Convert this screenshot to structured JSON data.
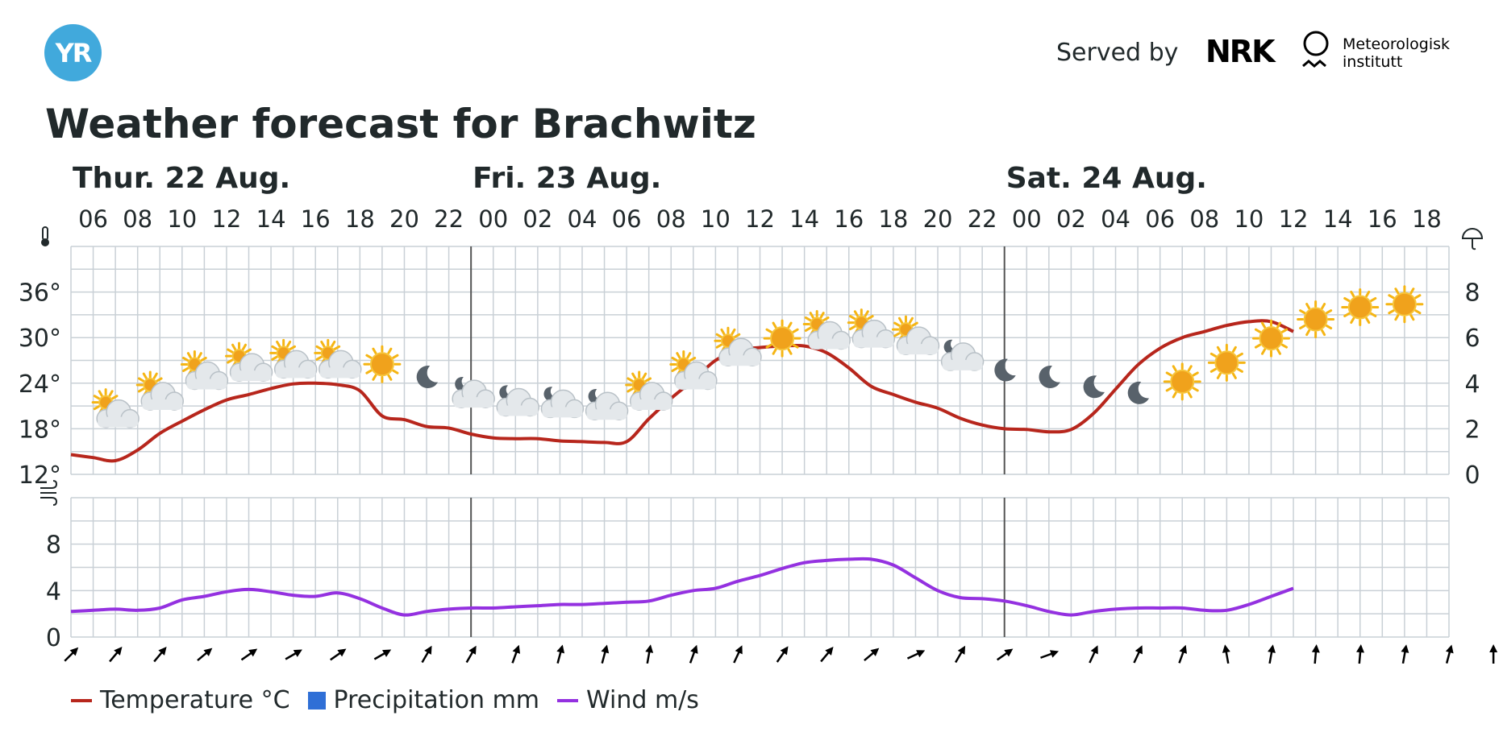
{
  "header": {
    "logo_text": "YR",
    "served_by": "Served by",
    "nrk_text": "NRK",
    "met_line1": "Meteorologisk",
    "met_line2": "institutt"
  },
  "title": "Weather forecast for Brachwitz",
  "colors": {
    "temperature": "#b7261c",
    "precipitation": "#2f6fd6",
    "wind": "#9431e0",
    "grid": "#c9d0d6",
    "logo": "#41a9dc"
  },
  "chart_data": {
    "type": "line",
    "days": [
      {
        "label": "Thur. 22 Aug.",
        "start_hour_index": 0
      },
      {
        "label": "Fri. 23 Aug.",
        "start_hour_index": 9
      },
      {
        "label": "Sat. 24 Aug.",
        "start_hour_index": 21
      }
    ],
    "hour_labels": [
      "06",
      "08",
      "10",
      "12",
      "14",
      "16",
      "18",
      "20",
      "22",
      "00",
      "02",
      "04",
      "06",
      "08",
      "10",
      "12",
      "14",
      "16",
      "18",
      "20",
      "22",
      "00",
      "02",
      "04",
      "06",
      "08",
      "10",
      "12",
      "14",
      "16",
      "18"
    ],
    "temperature_axis": {
      "ticks": [
        "12°",
        "18°",
        "24°",
        "30°",
        "36°"
      ],
      "ylim": [
        12,
        42
      ],
      "icon": "thermometer-icon"
    },
    "precipitation_axis": {
      "ticks": [
        "0",
        "2",
        "4",
        "6",
        "8"
      ],
      "ylim": [
        0,
        10
      ],
      "icon": "umbrella-icon"
    },
    "wind_axis": {
      "ticks": [
        "0",
        "4",
        "8"
      ],
      "ylim": [
        0,
        12
      ],
      "icon": "wind-icon"
    },
    "series": [
      {
        "name": "Temperature °C",
        "values": [
          14.6,
          14.2,
          13.8,
          15.2,
          17.4,
          19.0,
          20.5,
          21.8,
          22.5,
          23.3,
          23.9,
          24.0,
          23.8,
          23.0,
          19.7,
          19.2,
          18.3,
          18.1,
          17.3,
          16.8,
          16.7,
          16.7,
          16.4,
          16.3,
          16.2,
          16.3,
          19.3,
          22.0,
          24.4,
          27.0,
          28.3,
          28.7,
          28.9,
          28.9,
          28.0,
          26.0,
          23.6,
          22.5,
          21.5,
          20.7,
          19.4,
          18.5,
          18.0,
          17.9,
          17.6,
          17.9,
          20.0,
          23.2,
          26.4,
          28.6,
          30.0,
          30.8,
          31.6,
          32.1,
          32.1,
          30.8
        ]
      },
      {
        "name": "Precipitation mm",
        "values": []
      },
      {
        "name": "Wind m/s",
        "values": [
          2.2,
          2.3,
          2.4,
          2.3,
          2.5,
          3.2,
          3.5,
          3.9,
          4.1,
          3.9,
          3.6,
          3.5,
          3.8,
          3.3,
          2.5,
          1.9,
          2.2,
          2.4,
          2.5,
          2.5,
          2.6,
          2.7,
          2.8,
          2.8,
          2.9,
          3.0,
          3.1,
          3.6,
          4.0,
          4.2,
          4.8,
          5.3,
          5.9,
          6.4,
          6.6,
          6.7,
          6.7,
          6.2,
          5.1,
          4.0,
          3.4,
          3.3,
          3.1,
          2.7,
          2.2,
          1.9,
          2.2,
          2.4,
          2.5,
          2.5,
          2.5,
          2.3,
          2.3,
          2.8,
          3.5,
          4.2
        ]
      }
    ],
    "weather_icons": [
      "partly-cloudy-icon",
      "partly-cloudy-icon",
      "partly-cloudy-icon",
      "partly-cloudy-icon",
      "partly-cloudy-icon",
      "partly-cloudy-icon",
      "sun-icon",
      "moon-icon",
      "partly-cloudy-night-icon",
      "partly-cloudy-night-icon",
      "partly-cloudy-night-icon",
      "partly-cloudy-night-icon",
      "partly-cloudy-icon",
      "partly-cloudy-icon",
      "partly-cloudy-icon",
      "sun-icon",
      "partly-cloudy-icon",
      "partly-cloudy-icon",
      "partly-cloudy-icon",
      "partly-cloudy-night-icon",
      "moon-icon",
      "moon-icon",
      "moon-icon",
      "moon-icon",
      "sun-icon",
      "sun-icon",
      "sun-icon",
      "sun-icon",
      "sun-icon",
      "sun-icon"
    ],
    "weather_icon_temps": [
      20.2,
      22.5,
      25.2,
      26.3,
      26.7,
      26.7,
      26.5,
      24.8,
      22.8,
      21.7,
      21.5,
      21.2,
      22.5,
      25.2,
      28.3,
      29.9,
      30.5,
      30.7,
      29.8,
      27.7,
      25.7,
      24.8,
      23.5,
      22.7,
      24.2,
      26.7,
      29.9,
      32.4,
      34.0,
      34.4
    ],
    "wind_directions_deg": [
      45,
      40,
      40,
      50,
      55,
      60,
      55,
      60,
      30,
      30,
      20,
      15,
      15,
      10,
      20,
      25,
      35,
      40,
      50,
      65,
      30,
      55,
      70,
      25,
      25,
      20,
      -10,
      10,
      5,
      5,
      10,
      15,
      0
    ],
    "legend": [
      {
        "label": "Temperature °C",
        "kind": "line",
        "color": "#b7261c"
      },
      {
        "label": "Precipitation mm",
        "kind": "box",
        "color": "#2f6fd6"
      },
      {
        "label": "Wind m/s",
        "kind": "line",
        "color": "#9431e0"
      }
    ]
  }
}
